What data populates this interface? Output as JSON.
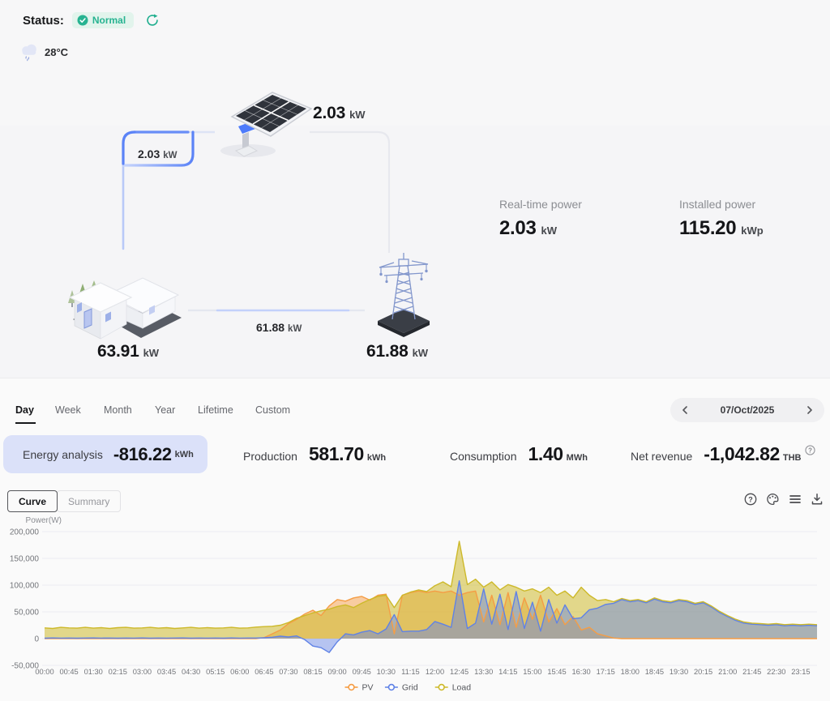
{
  "status_bar": {
    "label": "Status:",
    "badge_text": "Normal",
    "temperature": "28°C"
  },
  "flow": {
    "pv_total": {
      "value": "2.03",
      "unit": "kW"
    },
    "pv_to_load": {
      "value": "2.03",
      "unit": "kW"
    },
    "load_total": {
      "value": "63.91",
      "unit": "kW"
    },
    "load_to_grid": {
      "value": "61.88",
      "unit": "kW"
    },
    "grid_total": {
      "value": "61.88",
      "unit": "kW"
    }
  },
  "power_summary": {
    "realtime": {
      "label": "Real-time power",
      "value": "2.03",
      "unit": "kW"
    },
    "installed": {
      "label": "Installed power",
      "value": "115.20",
      "unit": "kWp"
    }
  },
  "period_tabs": [
    "Day",
    "Week",
    "Month",
    "Year",
    "Lifetime",
    "Custom"
  ],
  "active_tab": "Day",
  "date_picker": {
    "value": "07/Oct/2025"
  },
  "metrics": {
    "energy_analysis": {
      "label": "Energy analysis",
      "value": "-816.22",
      "unit": "kWh"
    },
    "production": {
      "label": "Production",
      "value": "581.70",
      "unit": "kWh"
    },
    "consumption": {
      "label": "Consumption",
      "value": "1.40",
      "unit": "MWh"
    },
    "net_revenue": {
      "label": "Net revenue",
      "value": "-1,042.82",
      "unit": "THB"
    }
  },
  "view_toggle": {
    "curve": "Curve",
    "summary": "Summary",
    "active": "Curve"
  },
  "colors": {
    "accent_blue": "#4d7bfb",
    "badge_green": "#27b391",
    "pill_bg": "#dbe1f9",
    "pv": "#f59d45",
    "grid": "#5f82e6",
    "load": "#cdb92a"
  },
  "chart_data": {
    "type": "area",
    "title": "",
    "ylabel": "Power(W)",
    "ylim": [
      -50000,
      200000
    ],
    "grid": true,
    "legend_position": "bottom",
    "y_tick_labels": [
      "200,000",
      "150,000",
      "100,000",
      "50,000",
      "0",
      "-50,000"
    ],
    "y_tick_values": [
      200000,
      150000,
      100000,
      50000,
      0,
      -50000
    ],
    "x_start": "00:00",
    "x_step_minutes": 15,
    "x_tick_labels": [
      "00:00",
      "00:45",
      "01:30",
      "02:15",
      "03:00",
      "03:45",
      "04:30",
      "05:15",
      "06:00",
      "06:45",
      "07:30",
      "08:15",
      "09:00",
      "09:45",
      "10:30",
      "11:15",
      "12:00",
      "12:45",
      "13:30",
      "14:15",
      "15:00",
      "15:45",
      "16:30",
      "17:15",
      "18:00",
      "18:45",
      "19:30",
      "20:15",
      "21:00",
      "21:45",
      "22:30",
      "23:15"
    ],
    "series": [
      {
        "name": "PV",
        "color": "#f59d45",
        "fill": "rgba(246,158,72,0.5)",
        "values": [
          0,
          0,
          0,
          0,
          0,
          0,
          0,
          0,
          0,
          0,
          0,
          0,
          0,
          0,
          0,
          0,
          0,
          0,
          0,
          0,
          0,
          0,
          0,
          0,
          0,
          0,
          0,
          2000,
          9000,
          16000,
          28000,
          36000,
          46000,
          53000,
          43000,
          61000,
          73000,
          70000,
          76000,
          79000,
          72000,
          81000,
          83000,
          9000,
          81000,
          86000,
          89000,
          86000,
          89000,
          86000,
          89000,
          81000,
          86000,
          89000,
          31000,
          81000,
          26000,
          86000,
          21000,
          76000,
          36000,
          81000,
          31000,
          56000,
          26000,
          41000,
          16000,
          21000,
          9000,
          5000,
          1000,
          0,
          0,
          0,
          0,
          0,
          0,
          0,
          0,
          0,
          0,
          0,
          0,
          0,
          0,
          0,
          0,
          0,
          0,
          0,
          0,
          0,
          0,
          0,
          0,
          0
        ]
      },
      {
        "name": "Grid",
        "color": "#5f82e6",
        "fill": "rgba(100,130,230,0.45)",
        "values": [
          800,
          1200,
          900,
          1100,
          800,
          1000,
          1200,
          900,
          1100,
          800,
          1000,
          900,
          1200,
          800,
          1100,
          900,
          1000,
          1200,
          800,
          1100,
          900,
          1000,
          800,
          1200,
          900,
          1100,
          1000,
          1500,
          2500,
          4500,
          3000,
          5000,
          -2000,
          -14000,
          -17000,
          -26000,
          -6000,
          9000,
          7000,
          12000,
          15000,
          9000,
          18000,
          45000,
          13000,
          14000,
          14000,
          17000,
          32000,
          27000,
          21000,
          108000,
          19000,
          29000,
          93000,
          27000,
          83000,
          17000,
          88000,
          19000,
          68000,
          14000,
          73000,
          29000,
          63000,
          37000,
          39000,
          54000,
          57000,
          64000,
          66000,
          73000,
          69000,
          71000,
          67000,
          74000,
          69000,
          67000,
          71000,
          69000,
          64000,
          67000,
          59000,
          49000,
          41000,
          34000,
          29000,
          27000,
          26000,
          25000,
          26000,
          24000,
          25000,
          24000,
          25000,
          24000
        ]
      },
      {
        "name": "Load",
        "color": "#cdb92a",
        "fill": "rgba(205,185,45,0.55)",
        "values": [
          20000,
          19000,
          21000,
          20000,
          19500,
          21000,
          19500,
          20500,
          19000,
          20500,
          21000,
          19500,
          20000,
          21000,
          19500,
          20500,
          19000,
          20000,
          21000,
          19500,
          20500,
          19500,
          20000,
          21000,
          19500,
          20000,
          21500,
          22500,
          23000,
          25000,
          30000,
          38000,
          43000,
          48000,
          52000,
          55000,
          60000,
          63000,
          58000,
          66000,
          73000,
          79000,
          81000,
          58000,
          81000,
          87000,
          91000,
          88000,
          99000,
          106000,
          97000,
          182000,
          101000,
          111000,
          96000,
          106000,
          91000,
          101000,
          96000,
          89000,
          93000,
          86000,
          96000,
          81000,
          89000,
          76000,
          96000,
          81000,
          71000,
          73000,
          69000,
          75000,
          71000,
          73000,
          69000,
          76000,
          71000,
          69000,
          73000,
          71000,
          66000,
          69000,
          61000,
          51000,
          43000,
          36000,
          31000,
          29000,
          28000,
          27000,
          28000,
          26000,
          27000,
          26000,
          27000,
          26000
        ]
      }
    ]
  }
}
